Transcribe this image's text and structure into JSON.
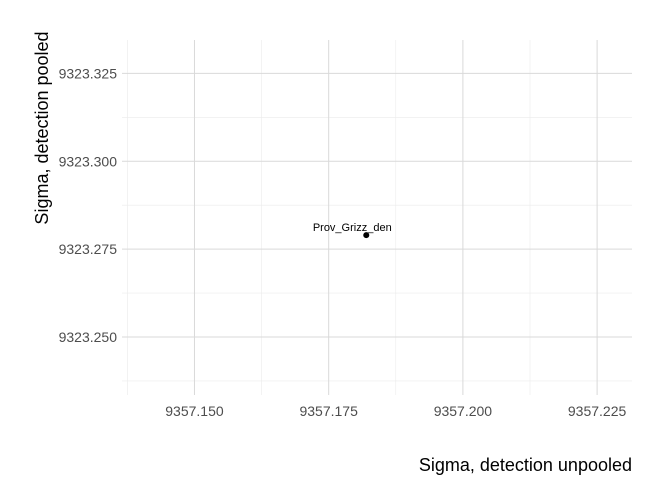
{
  "chart_data": {
    "type": "scatter",
    "xlabel": "Sigma, detection unpooled",
    "ylabel": "Sigma, detection pooled",
    "xlim": [
      9357.1365,
      9357.2315
    ],
    "ylim": [
      9323.2335,
      9323.3345
    ],
    "x_ticks": [
      9357.15,
      9357.175,
      9357.2,
      9357.225
    ],
    "x_tick_labels": [
      "9357.150",
      "9357.175",
      "9357.200",
      "9357.225"
    ],
    "y_ticks": [
      9323.25,
      9323.275,
      9323.3,
      9323.325
    ],
    "y_tick_labels": [
      "9323.250",
      "9323.275",
      "9323.300",
      "9323.325"
    ],
    "grid": true,
    "legend": "none",
    "points": [
      {
        "x": 9357.182,
        "y": 9323.279,
        "label": "Prov_Grizz_den"
      }
    ],
    "colors": {
      "point": "#000000",
      "grid_major": "#d9d9d9",
      "grid_minor": "#ebebeb"
    }
  }
}
